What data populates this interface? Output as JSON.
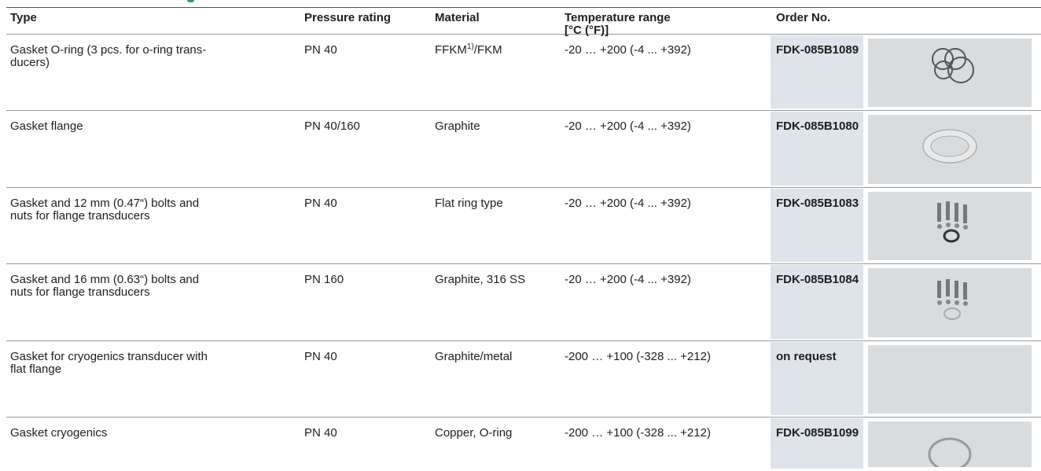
{
  "table": {
    "headers": [
      [
        "Type"
      ],
      [
        "Pressure rating"
      ],
      [
        "Material"
      ],
      [
        "Temperature range",
        "[°C (°F)]"
      ],
      [
        "Order No."
      ]
    ],
    "rows": [
      {
        "type": [
          "Gasket O-ring (3 pcs. for o-ring trans-",
          "ducers)"
        ],
        "pressure": "PN 40",
        "material": {
          "text": "FFKM",
          "sup": "1)",
          "rest": "/FKM"
        },
        "temperature": "-20 … +200 (-4 ... +392)",
        "order": "FDK-085B1089"
      },
      {
        "type": [
          "Gasket flange"
        ],
        "pressure": "PN 40/160",
        "material": {
          "text": "Graphite"
        },
        "temperature": "-20 … +200 (-4 ... +392)",
        "order": "FDK-085B1080"
      },
      {
        "type": [
          "Gasket and 12 mm (0.47“) bolts and",
          "nuts for flange transducers"
        ],
        "pressure": "PN 40",
        "material": {
          "text": "Flat ring type"
        },
        "temperature": "-20 … +200 (-4 ... +392)",
        "order": "FDK-085B1083"
      },
      {
        "type": [
          "Gasket and 16 mm (0.63“) bolts and",
          "nuts for flange transducers"
        ],
        "pressure": "PN 160",
        "material": {
          "text": "Graphite, 316 SS"
        },
        "temperature": "-20 … +200 (-4 ... +392)",
        "order": "FDK-085B1084"
      },
      {
        "type": [
          "Gasket for cryogenics transducer with",
          "flat flange"
        ],
        "pressure": "PN 40",
        "material": {
          "text": "Graphite/metal"
        },
        "temperature": "-200 … +100 (-328 ... +212)",
        "order": "on request"
      },
      {
        "type": [
          "Gasket cryogenics"
        ],
        "pressure": "PN 40",
        "material": {
          "text": "Copper, O-ring"
        },
        "temperature": "-200 … +100 (-328 ... +212)",
        "order": "FDK-085B1099"
      }
    ]
  }
}
